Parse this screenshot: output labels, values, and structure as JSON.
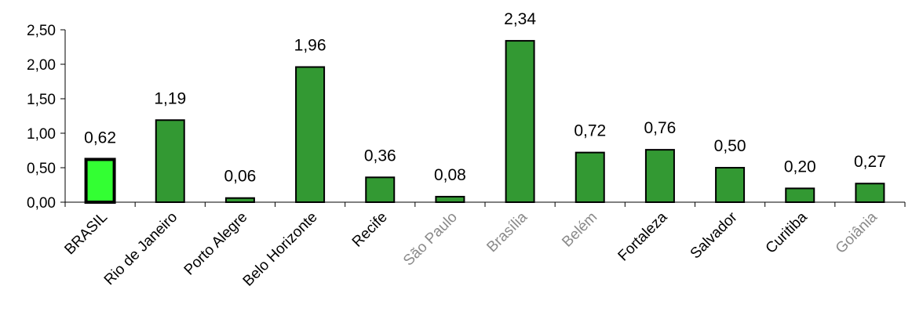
{
  "chart_data": {
    "type": "bar",
    "title": "",
    "xlabel": "",
    "ylabel": "",
    "categories": [
      "BRASIL",
      "Rio de Janeiro",
      "Porto Alegre",
      "Belo Horizonte",
      "Recife",
      "São Paulo",
      "Brasília",
      "Belém",
      "Fortaleza",
      "Salvador",
      "Curitiba",
      "Goiânia"
    ],
    "values": [
      0.62,
      1.19,
      0.06,
      1.96,
      0.36,
      0.08,
      2.34,
      0.72,
      0.76,
      0.5,
      0.2,
      0.27
    ],
    "value_labels": [
      "0,62",
      "1,19",
      "0,06",
      "1,96",
      "0,36",
      "0,08",
      "2,34",
      "0,72",
      "0,76",
      "0,50",
      "0,20",
      "0,27"
    ],
    "yticks": [
      "0,00",
      "0,50",
      "1,00",
      "1,50",
      "2,00",
      "2,50"
    ],
    "ylim": [
      0,
      2.5
    ],
    "grid": false,
    "legend": "none",
    "colors": {
      "bar": "#339933",
      "highlight_bar": "#33ff33",
      "bar_stroke": "#000000",
      "faded_label": "#8a8a8a"
    },
    "highlight_index": 0,
    "faded_label_indices": [
      5,
      6,
      7,
      11
    ]
  }
}
